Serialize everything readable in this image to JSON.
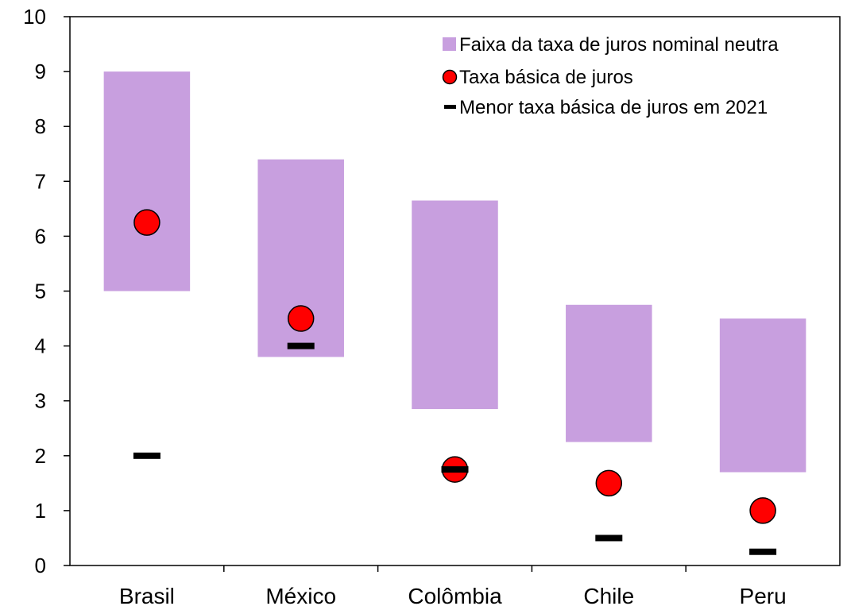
{
  "chart_data": {
    "type": "range-bar-with-markers",
    "categories": [
      "Brasil",
      "México",
      "Colômbia",
      "Chile",
      "Peru"
    ],
    "ylim": [
      0,
      10
    ],
    "yticks": [
      "0",
      "1",
      "2",
      "3",
      "4",
      "5",
      "6",
      "7",
      "8",
      "9",
      "10"
    ],
    "grid": false,
    "legend_position": "top-right",
    "series": [
      {
        "name": "Faixa da taxa de juros nominal neutra",
        "kind": "range",
        "color": "#c89fdf",
        "low": [
          5.0,
          3.8,
          2.85,
          2.25,
          1.7
        ],
        "high": [
          9.0,
          7.4,
          6.65,
          4.75,
          4.5
        ]
      },
      {
        "name": "Taxa básica de juros",
        "kind": "circle",
        "color": "#ff0000",
        "values": [
          6.25,
          4.5,
          1.75,
          1.5,
          1.0
        ]
      },
      {
        "name": "Menor taxa básica de juros em 2021",
        "kind": "dash",
        "color": "#000000",
        "values": [
          2.0,
          4.0,
          1.75,
          0.5,
          0.25
        ]
      }
    ]
  }
}
